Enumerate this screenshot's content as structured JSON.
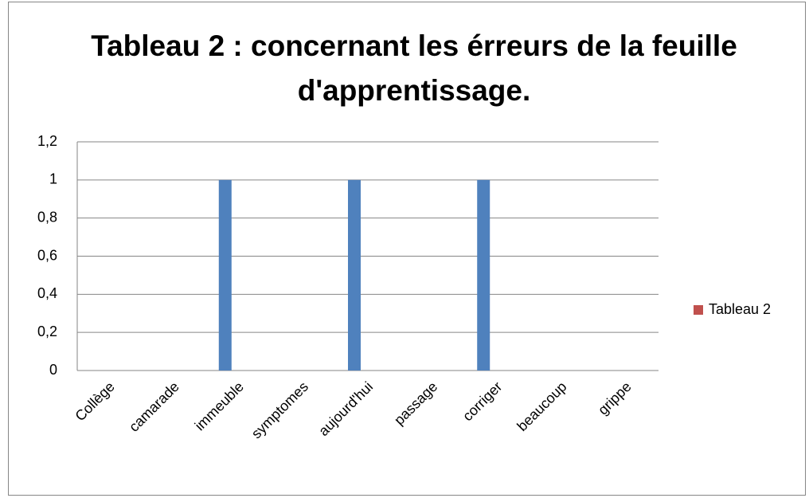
{
  "chart_data": {
    "type": "bar",
    "title": "Tableau 2 : concernant les érreurs de la feuille d'apprentissage.",
    "categories": [
      "Collège",
      "camarade",
      "immeuble",
      "symptomes",
      "aujourd'hui",
      "passage",
      "corriger",
      "beaucoup",
      "grippe"
    ],
    "series": [
      {
        "name": "Tableau 2",
        "color": "#4f81bd",
        "values": [
          0,
          0,
          1,
          0,
          1,
          0,
          1,
          0,
          0
        ]
      }
    ],
    "legend_color": "#c0504d",
    "legend": "right",
    "ylim": [
      0,
      1.2
    ],
    "yticks": [
      0,
      {
        "value": 0.2,
        "label": "0,2"
      },
      {
        "value": 0.4,
        "label": "0,4"
      },
      {
        "value": 0.6,
        "label": "0,6"
      },
      {
        "value": 0.8,
        "label": "0,8"
      },
      1,
      {
        "value": 1.2,
        "label": "1,2"
      }
    ],
    "grid": true
  }
}
